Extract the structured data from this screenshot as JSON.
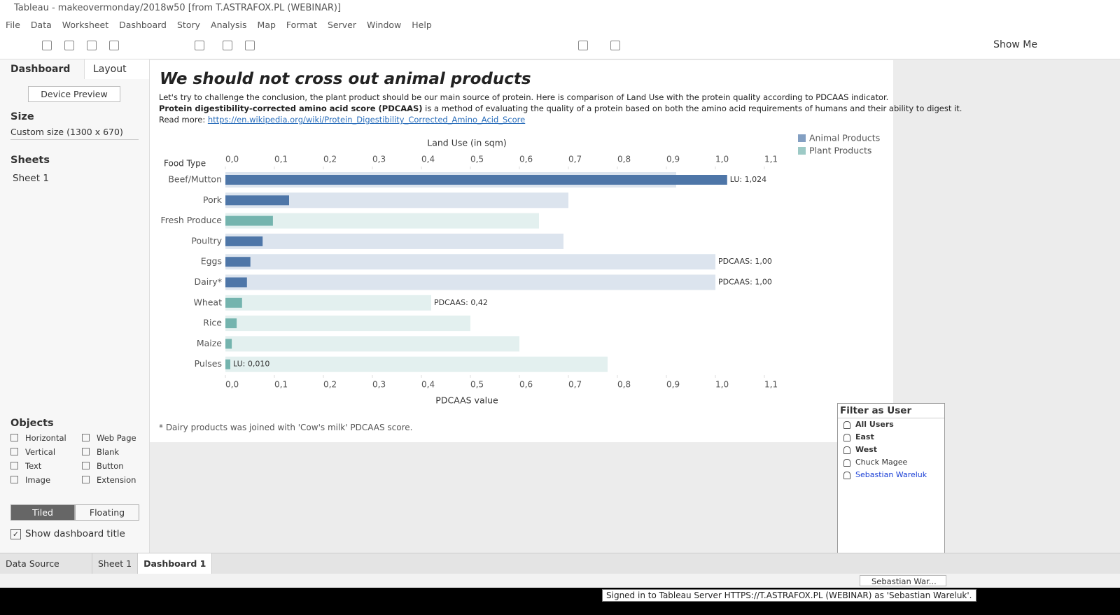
{
  "window": {
    "title": "Tableau - makeovermonday/2018w50 [from T.ASTRAFOX.PL (WEBINAR)]"
  },
  "menu": [
    "File",
    "Data",
    "Worksheet",
    "Dashboard",
    "Story",
    "Analysis",
    "Map",
    "Format",
    "Server",
    "Window",
    "Help"
  ],
  "toolbar": {
    "show_me": "Show Me"
  },
  "sidebar": {
    "tabs": [
      "Dashboard",
      "Layout"
    ],
    "device_preview": "Device Preview",
    "size_heading": "Size",
    "size_value": "Custom size (1300 x 670)",
    "sheets_heading": "Sheets",
    "sheets": [
      "Sheet 1"
    ],
    "objects_heading": "Objects",
    "objects": [
      "Horizontal",
      "Web Page",
      "Vertical",
      "Blank",
      "Text",
      "Button",
      "Image",
      "Extension"
    ],
    "layout_modes": [
      "Tiled",
      "Floating"
    ],
    "show_title": "Show dashboard title"
  },
  "chart_data": {
    "type": "bar",
    "title": "We should not cross out animal products",
    "description": {
      "line1": "Let's try to challenge the conclusion, the plant product should be our main source of protein. Here is comparison of Land Use with the protein quality according to PDCAAS indicator.",
      "bold": "Protein digestibility-corrected amino acid score (PDCAAS)",
      "line2": " is a method of evaluating the quality of a protein based on both the amino acid requirements of humans and their ability to digest it.",
      "read_more": "Read more: ",
      "link": "https://en.wikipedia.org/wiki/Protein_Digestibility_Corrected_Amino_Acid_Score"
    },
    "footnote": "* Dairy products was joined with 'Cow's milk' PDCAAS score.",
    "y_title": "Food Type",
    "x_title": "Land Use (in sqm)",
    "x2_title": "PDCAAS value",
    "categories": [
      "Beef/Mutton",
      "Pork",
      "Fresh Produce",
      "Poultry",
      "Eggs",
      "Dairy*",
      "Wheat",
      "Rice",
      "Maize",
      "Pulses"
    ],
    "series": [
      {
        "name": "Animal Products",
        "color": "#4e76a8",
        "values": [
          1.024,
          0.13,
          null,
          0.076,
          0.051,
          0.044,
          null,
          null,
          null,
          null
        ],
        "value_labels": [
          "LU: 1,024",
          null,
          null,
          null,
          null,
          null,
          null,
          null,
          null,
          null
        ],
        "pdcaas_values": [
          0.92,
          0.7,
          null,
          0.69,
          1.0,
          1.0,
          null,
          null,
          null,
          null
        ],
        "pdcaas_value_labels": [
          null,
          null,
          null,
          null,
          "PDCAAS: 1,00",
          "PDCAAS: 1,00",
          null,
          null,
          null,
          null
        ]
      },
      {
        "name": "Plant Products",
        "color": "#74b4ae",
        "values": [
          null,
          null,
          0.097,
          null,
          null,
          null,
          0.034,
          0.023,
          0.013,
          0.01
        ],
        "value_labels": [
          null,
          null,
          null,
          null,
          null,
          null,
          null,
          null,
          null,
          "LU: 0,010"
        ],
        "pdcaas_values": [
          null,
          null,
          0.64,
          null,
          null,
          null,
          0.42,
          0.5,
          0.6,
          0.78
        ],
        "pdcaas_value_labels": [
          null,
          null,
          null,
          null,
          null,
          null,
          "PDCAAS: 0,42",
          null,
          null,
          null
        ]
      }
    ],
    "xlim": [
      0,
      1.1
    ],
    "xticks": [
      {
        "value": 0,
        "label": "0,0"
      },
      {
        "value": 0.1,
        "label": "0,1"
      },
      {
        "value": 0.2,
        "label": "0,2"
      },
      {
        "value": 0.3,
        "label": "0,3"
      },
      {
        "value": 0.4,
        "label": "0,4"
      },
      {
        "value": 0.5,
        "label": "0,5"
      },
      {
        "value": 0.6,
        "label": "0,6"
      },
      {
        "value": 0.7,
        "label": "0,7"
      },
      {
        "value": 0.8,
        "label": "0,8"
      },
      {
        "value": 0.9,
        "label": "0,9"
      },
      {
        "value": 1.0,
        "label": "1,0"
      },
      {
        "value": 1.1,
        "label": "1,1"
      }
    ],
    "x2lim": [
      0,
      1.1
    ],
    "x2ticks": [
      {
        "value": 0,
        "label": "0,0"
      },
      {
        "value": 0.1,
        "label": "0,1"
      },
      {
        "value": 0.2,
        "label": "0,2"
      },
      {
        "value": 0.3,
        "label": "0,3"
      },
      {
        "value": 0.4,
        "label": "0,4"
      },
      {
        "value": 0.5,
        "label": "0,5"
      },
      {
        "value": 0.6,
        "label": "0,6"
      },
      {
        "value": 0.7,
        "label": "0,7"
      },
      {
        "value": 0.8,
        "label": "0,8"
      },
      {
        "value": 0.9,
        "label": "0,9"
      },
      {
        "value": 1.0,
        "label": "1,0"
      },
      {
        "value": 1.1,
        "label": "1,1"
      }
    ],
    "legend": "top-right"
  },
  "filter_panel": {
    "title": "Filter as User",
    "groups": [
      "All Users",
      "East",
      "West"
    ],
    "users": [
      "Chuck Magee",
      "Sebastian Wareluk"
    ]
  },
  "tabs": [
    "Data Source",
    "Sheet 1",
    "Dashboard 1"
  ],
  "status": {
    "user": "Sebastian War...",
    "tooltip": "Signed in to Tableau Server HTTPS://T.ASTRAFOX.PL (WEBINAR) as 'Sebastian Wareluk'."
  }
}
